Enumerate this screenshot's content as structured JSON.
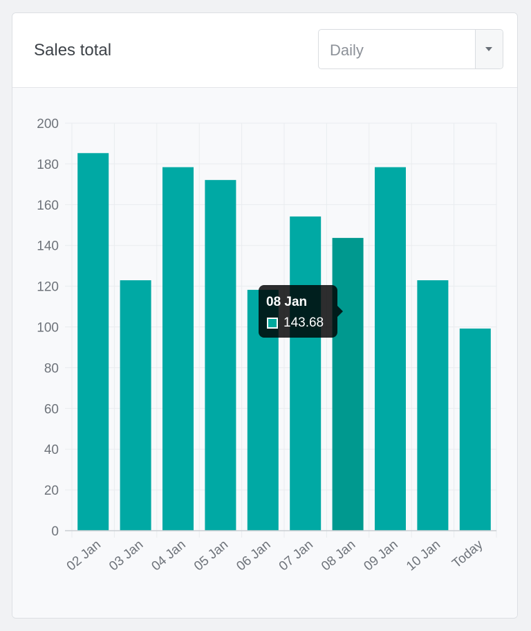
{
  "header": {
    "title": "Sales total"
  },
  "period_select": {
    "value": "Daily"
  },
  "tooltip": {
    "title": "08 Jan",
    "value": "143.68",
    "swatch_color": "#00a99d"
  },
  "colors": {
    "bar": "#00a9a4",
    "bar_hover": "#00998f",
    "grid": "#e9ecef",
    "axis": "#c9cdd2",
    "tick_text": "#6e737a"
  },
  "chart_data": {
    "type": "bar",
    "categories": [
      "02 Jan",
      "03 Jan",
      "04 Jan",
      "05 Jan",
      "06 Jan",
      "07 Jan",
      "08 Jan",
      "09 Jan",
      "10 Jan",
      "Today"
    ],
    "values": [
      185.3,
      122.9,
      178.4,
      172.1,
      118.2,
      154.2,
      143.68,
      178.4,
      122.9,
      99.2
    ],
    "hover_index": 6,
    "ylim": [
      0,
      200
    ],
    "yticks": [
      0,
      20,
      40,
      60,
      80,
      100,
      120,
      140,
      160,
      180,
      200
    ],
    "grid": true,
    "legend": "none"
  }
}
